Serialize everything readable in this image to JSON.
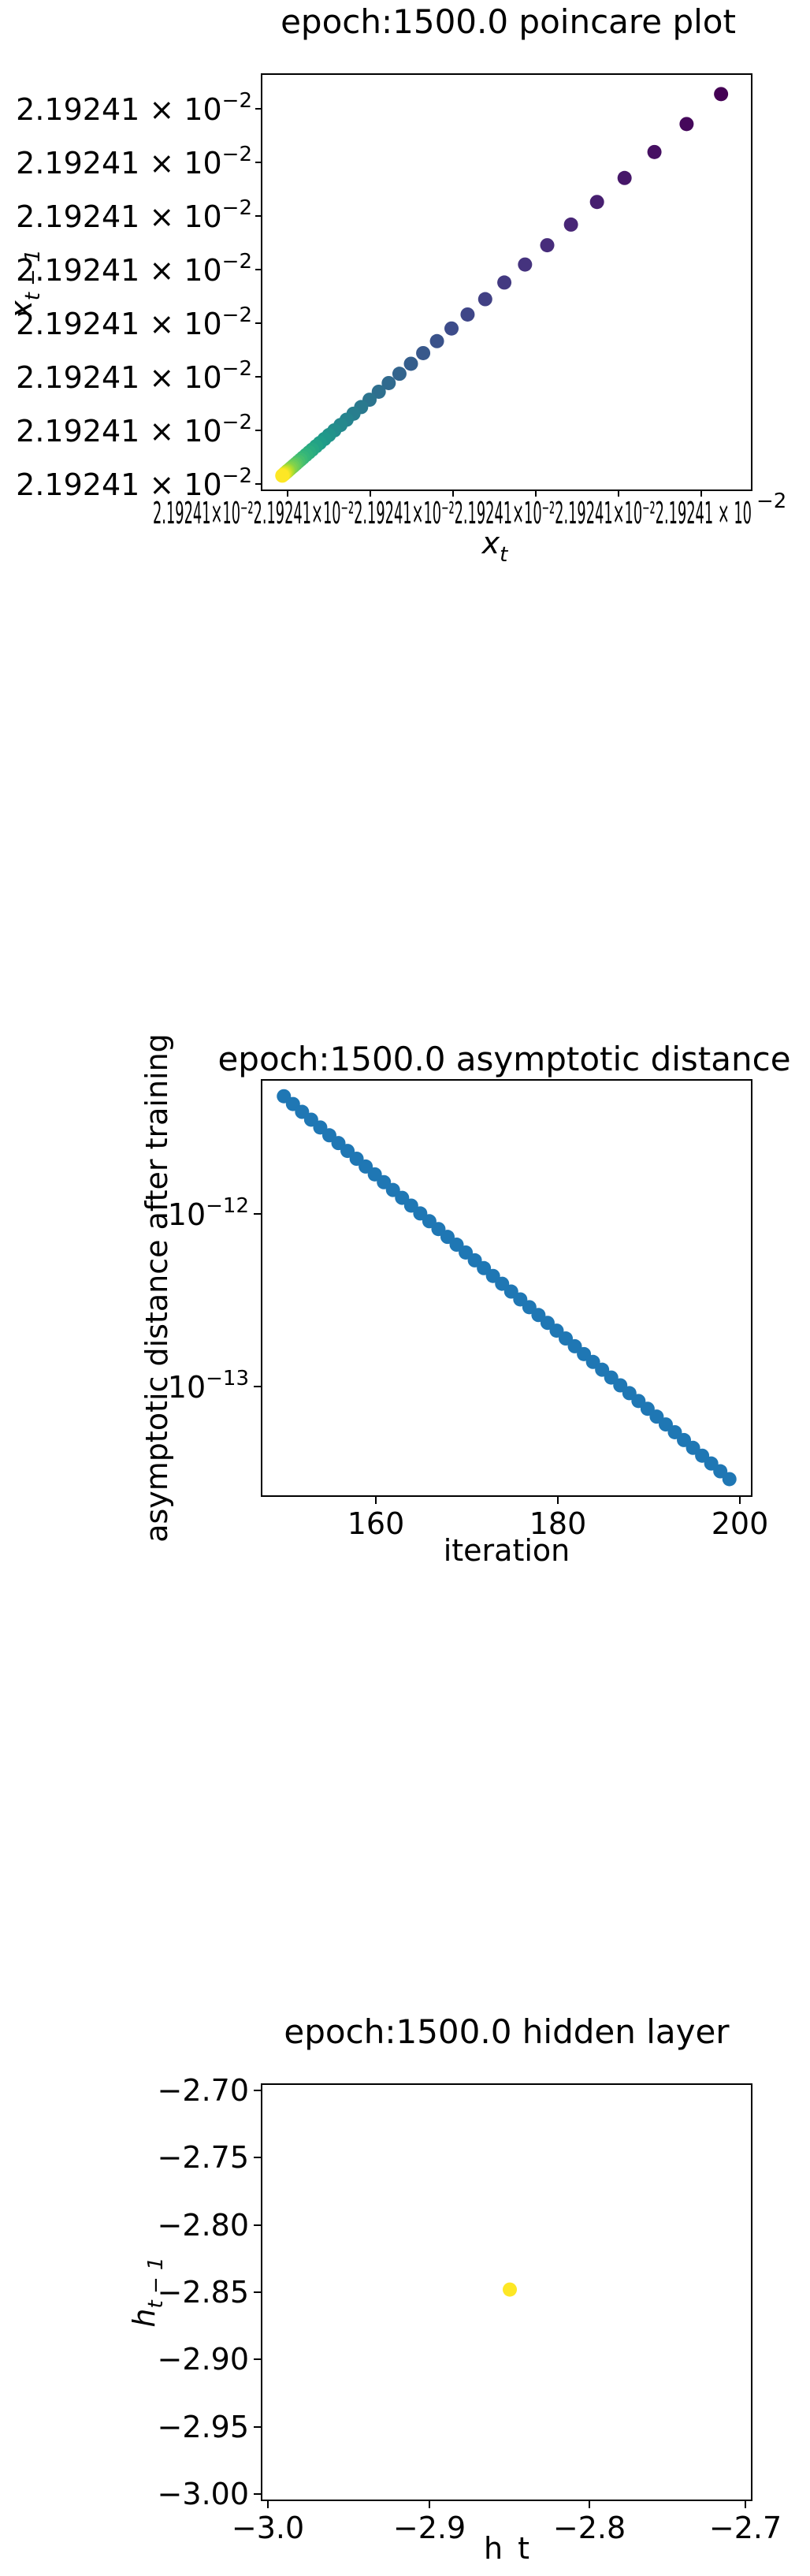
{
  "charts": {
    "poincare": {
      "title": "epoch:1500.0 poincare plot",
      "xlabel_base": "x",
      "xlabel_sub": "t",
      "ylabel_base": "x",
      "ylabel_sub": "t − 1",
      "tick_mantissa": "2.19241 ×",
      "tick_base": "10",
      "tick_exp": "−2",
      "x_tick_overlap_text": "2.19241×10⁻²2.19241×10⁻²2.19241×10⁻²2.19241×10⁻²2.19241×10⁻²2.19241 × 10",
      "x_tick_overlap_exp": "−2"
    },
    "asymptotic": {
      "title": "epoch:1500.0 asymptotic distance",
      "xlabel": "iteration",
      "ylabel": "asymptotic distance after training",
      "x_ticks": [
        "160",
        "180",
        "200"
      ],
      "y_ticks": [
        {
          "base": "10",
          "exp": "−12"
        },
        {
          "base": "10",
          "exp": "−13"
        }
      ]
    },
    "hidden": {
      "title": "epoch:1500.0 hidden layer",
      "xlabel": "h_t",
      "ylabel_base": "h",
      "ylabel_sub": "t − 1",
      "x_ticks": [
        "−3.0",
        "−2.9",
        "−2.8",
        "−2.7"
      ],
      "y_ticks": [
        "−2.70",
        "−2.75",
        "−2.80",
        "−2.85",
        "−2.90",
        "−2.95",
        "−3.00"
      ]
    }
  },
  "chart_data": [
    {
      "type": "scatter",
      "title": "epoch:1500.0 poincare plot",
      "xlabel": "x_t",
      "ylabel": "x_{t-1}",
      "color_map": "viridis",
      "colors": {
        "start": "#440154",
        "end": "#fde725"
      },
      "note": "all tick labels read 2.19241 × 10^-2",
      "x": [
        40,
        35.5,
        31.3,
        27.4,
        23.8,
        20.4,
        17.3,
        14.4,
        11.7,
        9.2,
        6.9,
        4.8,
        2.9,
        1.1,
        -0.5,
        -2.0,
        -3.4,
        -4.7,
        -5.9,
        -7.0,
        -8.0,
        -8.9,
        -9.7,
        -10.5,
        -11.2,
        -11.8,
        -12.4,
        -12.9,
        -13.4,
        -13.8,
        -14.2,
        -14.6,
        -14.9,
        -15.2,
        -15.5,
        -15.7,
        -15.9,
        -16.1,
        -16.3,
        -16.5,
        -16.6,
        -16.7,
        -16.8,
        -16.9,
        -17.0,
        -17.1,
        -17.2,
        -17.3
      ],
      "y": [
        44,
        39.5,
        35.3,
        31.4,
        27.8,
        24.4,
        21.3,
        18.4,
        15.7,
        13.2,
        10.9,
        8.8,
        6.9,
        5.1,
        3.5,
        2.0,
        0.6,
        -0.7,
        -1.9,
        -3.0,
        -4.0,
        -4.9,
        -5.7,
        -6.5,
        -7.2,
        -7.8,
        -8.4,
        -8.9,
        -9.4,
        -9.8,
        -10.2,
        -10.6,
        -10.9,
        -11.2,
        -11.5,
        -11.7,
        -11.9,
        -12.1,
        -12.3,
        -12.5,
        -12.6,
        -12.7,
        -12.8,
        -12.9,
        -13.0,
        -13.1,
        -13.2,
        -13.3
      ],
      "xlim": [
        -20,
        44
      ],
      "ylim": [
        -15.5,
        47
      ]
    },
    {
      "type": "scatter",
      "title": "epoch:1500.0 asymptotic distance",
      "xlabel": "iteration",
      "ylabel": "asymptotic distance after training",
      "log_y": true,
      "color": "#1f77b4",
      "x_start": 150,
      "x_end": 199,
      "y_start": 4.6e-12,
      "y_end": 3e-14,
      "xlim": [
        147.55,
        201.45
      ],
      "ylim": [
        2.4e-14,
        5.7e-12
      ]
    },
    {
      "type": "scatter",
      "title": "epoch:1500.0 hidden layer",
      "xlabel": "h_t",
      "ylabel": "h_{t-1}",
      "x": [
        -2.848
      ],
      "y": [
        -2.848
      ],
      "color": "#fde725",
      "xlim": [
        -3.005,
        -2.695
      ],
      "ylim": [
        -3.005,
        -2.695
      ]
    }
  ]
}
